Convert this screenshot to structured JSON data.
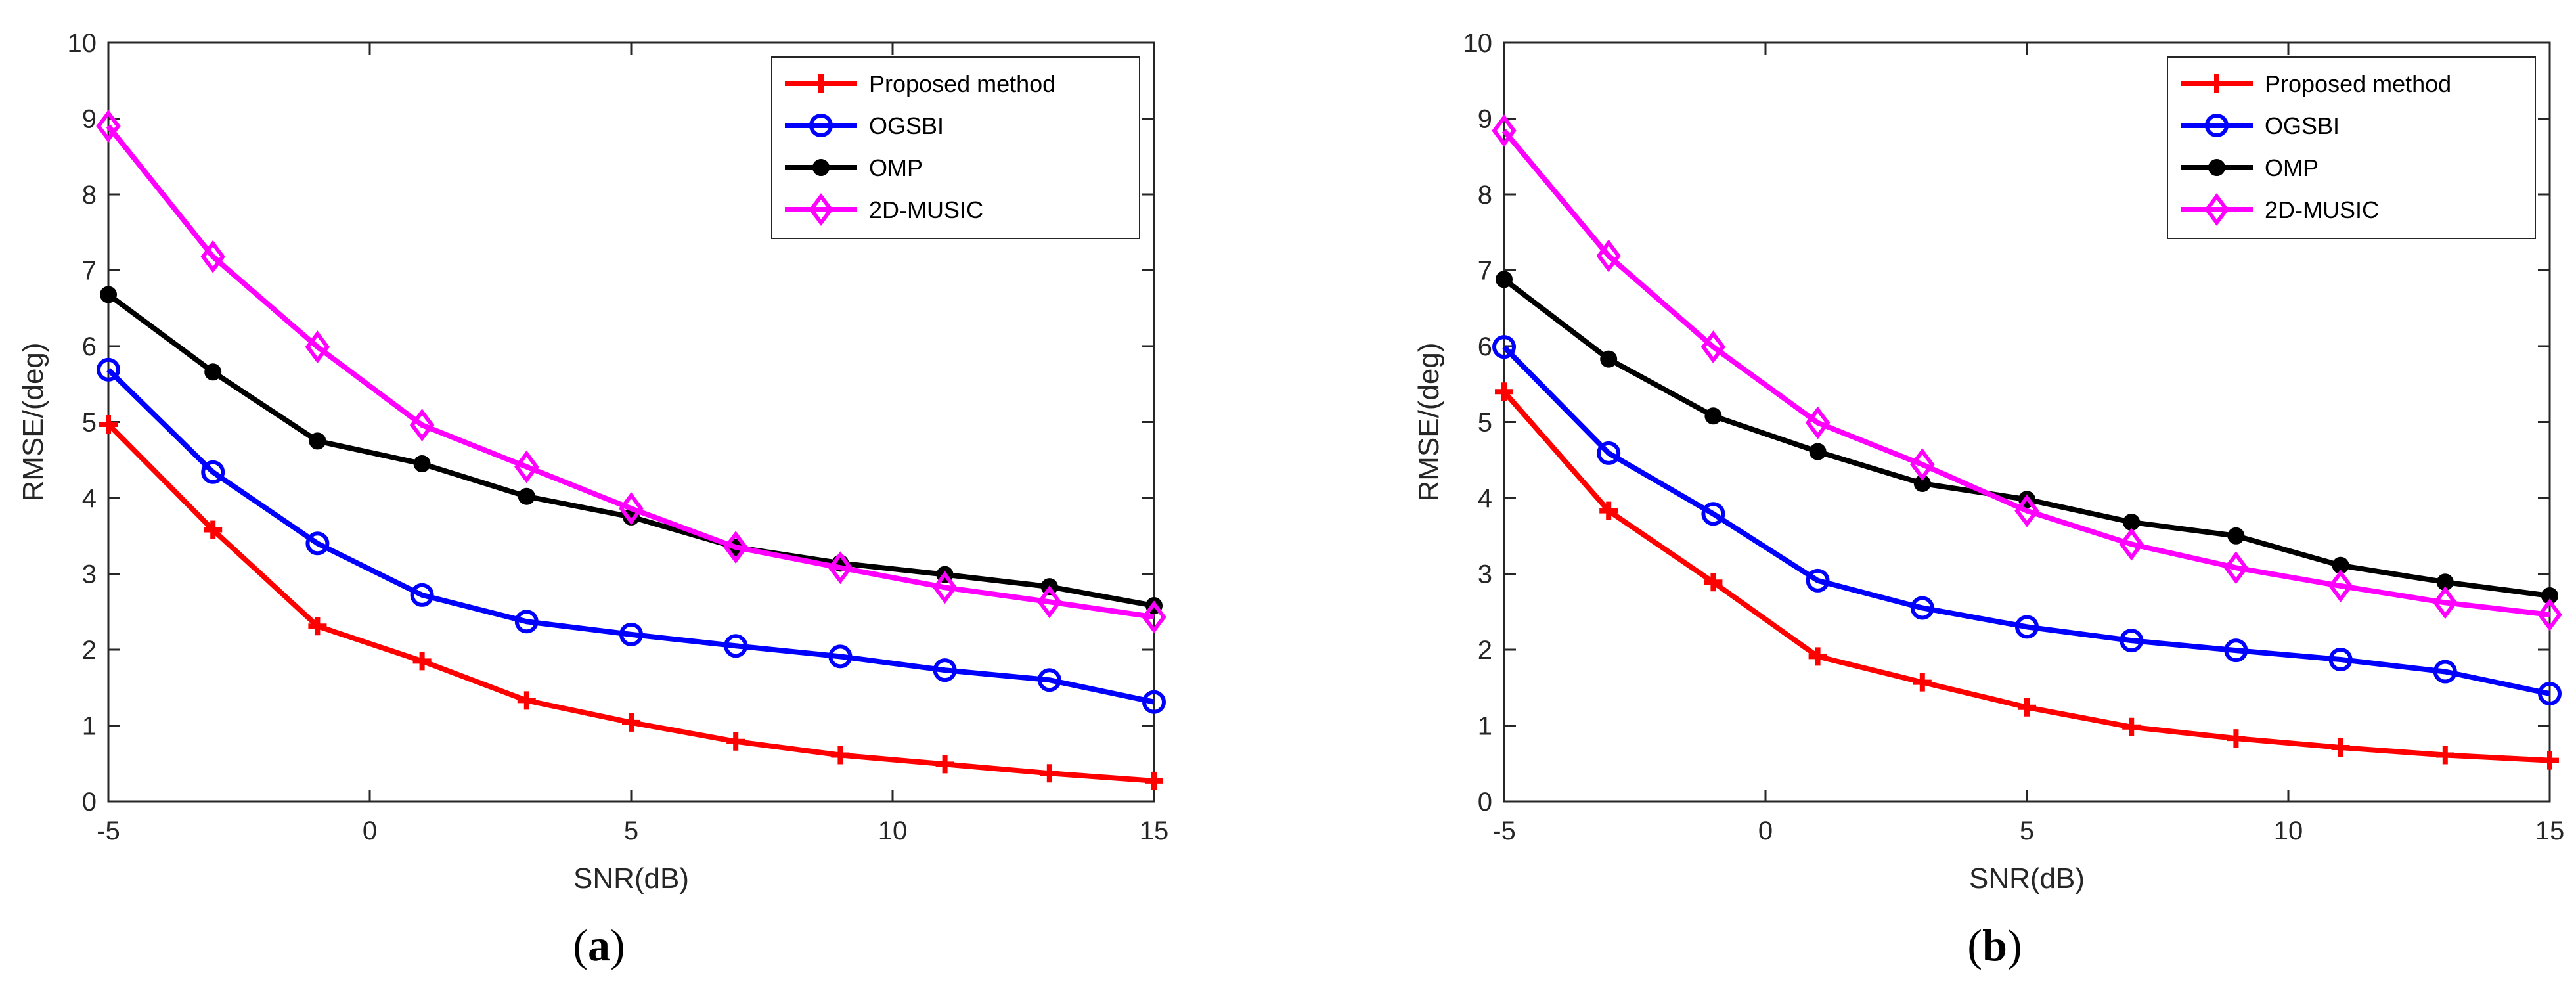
{
  "chart_data": [
    {
      "type": "line",
      "caption_open": "(",
      "caption_letter": "a",
      "caption_close": ")",
      "xlabel": "SNR(dB)",
      "ylabel": "RMSE/(deg)",
      "xlim": [
        -5,
        15
      ],
      "ylim": [
        0,
        10
      ],
      "xticks": [
        "-5",
        "0",
        "5",
        "10",
        "15"
      ],
      "yticks": [
        "0",
        "1",
        "2",
        "3",
        "4",
        "5",
        "6",
        "7",
        "8",
        "9",
        "10"
      ],
      "x": [
        -5,
        -3,
        -1,
        1,
        3,
        5,
        7,
        9,
        11,
        13,
        15
      ],
      "legend_position": "top-right",
      "series": [
        {
          "name": "Proposed method",
          "marker": "plus",
          "color": "#ff0000",
          "values": [
            4.97,
            3.58,
            2.31,
            1.85,
            1.33,
            1.04,
            0.79,
            0.61,
            0.49,
            0.37,
            0.27
          ]
        },
        {
          "name": "OGSBI",
          "marker": "circle",
          "color": "#0000ff",
          "values": [
            5.69,
            4.34,
            3.4,
            2.72,
            2.37,
            2.2,
            2.05,
            1.91,
            1.73,
            1.6,
            1.31
          ]
        },
        {
          "name": "OMP",
          "marker": "dot",
          "color": "#000000",
          "values": [
            6.68,
            5.66,
            4.75,
            4.45,
            4.02,
            3.75,
            3.35,
            3.14,
            2.99,
            2.83,
            2.58
          ]
        },
        {
          "name": "2D-MUSIC",
          "marker": "diamond",
          "color": "#ff00ff",
          "values": [
            8.9,
            7.18,
            5.99,
            4.96,
            4.41,
            3.86,
            3.35,
            3.08,
            2.82,
            2.63,
            2.43
          ]
        }
      ]
    },
    {
      "type": "line",
      "caption_open": "(",
      "caption_letter": "b",
      "caption_close": ")",
      "xlabel": "SNR(dB)",
      "ylabel": "RMSE/(deg)",
      "xlim": [
        -5,
        15
      ],
      "ylim": [
        0,
        10
      ],
      "xticks": [
        "-5",
        "0",
        "5",
        "10",
        "15"
      ],
      "yticks": [
        "0",
        "1",
        "2",
        "3",
        "4",
        "5",
        "6",
        "7",
        "8",
        "9",
        "10"
      ],
      "x": [
        -5,
        -3,
        -1,
        1,
        3,
        5,
        7,
        9,
        11,
        13,
        15
      ],
      "legend_position": "top-right",
      "series": [
        {
          "name": "Proposed method",
          "marker": "plus",
          "color": "#ff0000",
          "values": [
            5.4,
            3.83,
            2.89,
            1.91,
            1.57,
            1.24,
            0.98,
            0.83,
            0.71,
            0.61,
            0.54
          ]
        },
        {
          "name": "OGSBI",
          "marker": "circle",
          "color": "#0000ff",
          "values": [
            5.99,
            4.59,
            3.79,
            2.91,
            2.55,
            2.3,
            2.12,
            1.99,
            1.87,
            1.71,
            1.42
          ]
        },
        {
          "name": "OMP",
          "marker": "dot",
          "color": "#000000",
          "values": [
            6.88,
            5.83,
            5.08,
            4.61,
            4.19,
            3.98,
            3.68,
            3.5,
            3.11,
            2.89,
            2.71
          ]
        },
        {
          "name": "2D-MUSIC",
          "marker": "diamond",
          "color": "#ff00ff",
          "values": [
            8.84,
            7.19,
            5.99,
            4.99,
            4.44,
            3.83,
            3.39,
            3.08,
            2.84,
            2.62,
            2.46
          ]
        }
      ]
    }
  ]
}
